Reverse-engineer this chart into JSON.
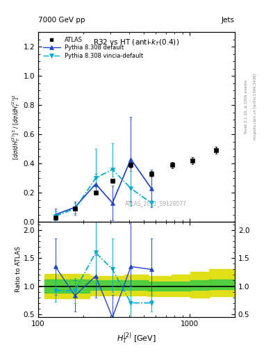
{
  "title": "R32 vs HT (anti-k_{T}(0.4))",
  "header_left": "7000 GeV pp",
  "header_right": "Jets",
  "watermark": "ATLAS_2011_S9128077",
  "ylabel_main": "[do/dH_T^(2)]^3 / [do/dH_T^(2)]^2",
  "ylabel_ratio": "Ratio to ATLAS",
  "xlabel": "H_T^(2) [GeV]",
  "ylim_main": [
    0,
    1.3
  ],
  "ylim_ratio": [
    0.45,
    2.15
  ],
  "xlim": [
    100,
    2000
  ],
  "atlas_x": [
    130,
    175,
    240,
    310,
    410,
    560,
    770,
    1050,
    1500
  ],
  "atlas_y": [
    0.03,
    0.09,
    0.2,
    0.28,
    0.39,
    0.33,
    0.39,
    0.42,
    0.49
  ],
  "atlas_yerr": [
    0.005,
    0.008,
    0.012,
    0.015,
    0.02,
    0.018,
    0.022,
    0.022,
    0.025
  ],
  "pythia_x": [
    130,
    175,
    240,
    310,
    410,
    560
  ],
  "pythia_y": [
    0.05,
    0.1,
    0.26,
    0.13,
    0.43,
    0.23
  ],
  "pythia_yerr_lo": [
    0.04,
    0.04,
    0.07,
    0.12,
    0.29,
    0.13
  ],
  "pythia_yerr_hi": [
    0.04,
    0.04,
    0.07,
    0.12,
    0.29,
    0.13
  ],
  "vincia_x": [
    130,
    175,
    240,
    310,
    410,
    560
  ],
  "vincia_y": [
    0.04,
    0.09,
    0.3,
    0.36,
    0.23,
    0.13
  ],
  "vincia_yerr_lo": [
    0.03,
    0.04,
    0.06,
    0.05,
    0.12,
    0.02
  ],
  "vincia_yerr_hi": [
    0.03,
    0.04,
    0.2,
    0.18,
    0.12,
    0.02
  ],
  "ratio_pythia_x": [
    130,
    175,
    240,
    310,
    410,
    560
  ],
  "ratio_pythia_y": [
    1.35,
    0.83,
    1.18,
    0.44,
    1.35,
    1.3
  ],
  "ratio_pythia_yerr_lo": [
    0.5,
    0.28,
    0.38,
    0.4,
    1.05,
    0.55
  ],
  "ratio_pythia_yerr_hi": [
    0.5,
    0.28,
    0.38,
    0.4,
    1.05,
    0.55
  ],
  "ratio_vincia_x": [
    130,
    175,
    240,
    310,
    410,
    560
  ],
  "ratio_vincia_y": [
    0.92,
    0.92,
    1.6,
    1.3,
    0.7,
    0.7
  ],
  "ratio_vincia_yerr_lo": [
    0.2,
    0.22,
    0.55,
    0.4,
    0.3,
    0.15
  ],
  "ratio_vincia_yerr_hi": [
    0.2,
    0.22,
    0.55,
    0.55,
    0.3,
    0.15
  ],
  "band_edges": [
    110,
    220,
    370,
    530,
    760,
    1020,
    1350,
    2000
  ],
  "green_lo": [
    0.88,
    0.93,
    0.93,
    0.92,
    0.92,
    0.93,
    0.95,
    0.95
  ],
  "green_hi": [
    1.12,
    1.1,
    1.1,
    1.08,
    1.08,
    1.1,
    1.12,
    1.12
  ],
  "yellow_lo": [
    0.78,
    0.83,
    0.83,
    0.82,
    0.82,
    0.8,
    0.82,
    0.82
  ],
  "yellow_hi": [
    1.22,
    1.18,
    1.2,
    1.18,
    1.2,
    1.25,
    1.3,
    1.3
  ],
  "atlas_color": "#000000",
  "pythia_color": "#2244cc",
  "vincia_color": "#00aacc",
  "green_color": "#44cc44",
  "yellow_color": "#dddd00"
}
